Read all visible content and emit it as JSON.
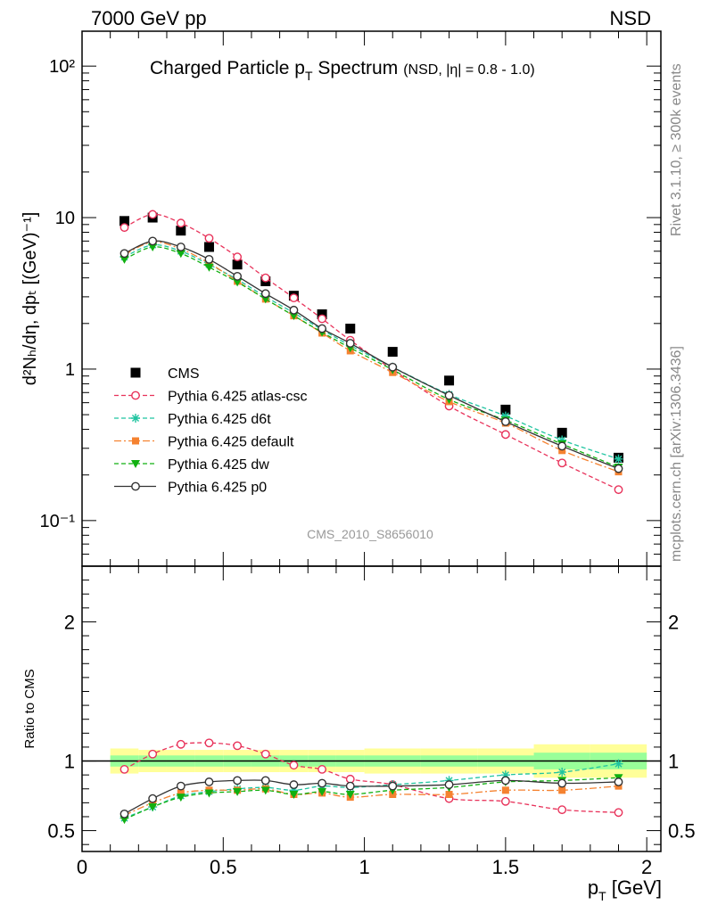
{
  "header": {
    "left": "7000 GeV pp",
    "right": "NSD"
  },
  "side_labels": {
    "rivet": "Rivet 3.1.10, ≥ 300k events",
    "mcplots": "mcplots.cern.ch [arXiv:1306.3436]"
  },
  "colors": {
    "cms": "#000000",
    "atlas_csc": "#e8325a",
    "d6t": "#1fc4a0",
    "default": "#f58230",
    "dw": "#10b010",
    "p0": "#333333",
    "band_outer": "#ffff99",
    "band_inner": "#99ff99"
  },
  "chart_data": [
    {
      "type": "scatter",
      "panel": "main",
      "title": "Charged Particle p",
      "title_sub": "T",
      "title_suffix": " Spectrum",
      "title_note": "(NSD, |η| = 0.8 - 1.0)",
      "ylabel": "d²Nₕ/dη, dpₜ [(GeV)⁻¹]",
      "yscale": "log",
      "xlim": [
        0,
        2.05
      ],
      "ylim": [
        0.05,
        170
      ],
      "ytick_labels": [
        "10⁻¹",
        "1",
        "10",
        "10²"
      ],
      "watermark": "CMS_2010_S8656010",
      "legend_position": "lower-left",
      "x": [
        0.15,
        0.25,
        0.35,
        0.45,
        0.55,
        0.65,
        0.75,
        0.85,
        0.95,
        1.1,
        1.3,
        1.5,
        1.7,
        1.9
      ],
      "series": [
        {
          "name": "CMS",
          "key": "cms",
          "style": "square",
          "values": [
            9.5,
            10.0,
            8.2,
            6.4,
            4.9,
            3.8,
            3.05,
            2.3,
            1.85,
            1.3,
            0.84,
            0.54,
            0.38,
            0.26
          ]
        },
        {
          "name": "Pythia 6.425 atlas-csc",
          "key": "atlas_csc",
          "style": "open-circle-dashed",
          "values": [
            8.6,
            10.5,
            9.2,
            7.3,
            5.5,
            4.0,
            2.95,
            2.15,
            1.55,
            0.99,
            0.57,
            0.37,
            0.24,
            0.16
          ]
        },
        {
          "name": "Pythia 6.425 d6t",
          "key": "d6t",
          "style": "star-dashed",
          "values": [
            5.5,
            6.6,
            6.0,
            4.9,
            3.9,
            3.0,
            2.35,
            1.82,
            1.43,
            1.03,
            0.68,
            0.49,
            0.34,
            0.255
          ]
        },
        {
          "name": "Pythia 6.425 default",
          "key": "default",
          "style": "filled-square-dashdot",
          "values": [
            5.7,
            6.9,
            6.2,
            5.0,
            3.8,
            2.9,
            2.25,
            1.73,
            1.32,
            0.95,
            0.61,
            0.44,
            0.29,
            0.21
          ]
        },
        {
          "name": "Pythia 6.425 dw",
          "key": "dw",
          "style": "triangle-dashed",
          "values": [
            5.3,
            6.4,
            5.8,
            4.7,
            3.75,
            2.9,
            2.25,
            1.75,
            1.38,
            0.99,
            0.63,
            0.46,
            0.32,
            0.225
          ]
        },
        {
          "name": "Pythia 6.425 p0",
          "key": "p0",
          "style": "open-circle-solid",
          "values": [
            5.8,
            7.0,
            6.4,
            5.3,
            4.1,
            3.15,
            2.45,
            1.85,
            1.48,
            1.03,
            0.67,
            0.45,
            0.31,
            0.22
          ]
        }
      ]
    },
    {
      "type": "line",
      "panel": "ratio",
      "ylabel": "Ratio to CMS",
      "xlabel": "p",
      "xlabel_sub": "T",
      "xlabel_suffix": " [GeV]",
      "xlim": [
        0,
        2.05
      ],
      "ylim": [
        0.35,
        2.4
      ],
      "xticks": [
        0,
        0.5,
        1,
        1.5,
        2
      ],
      "yticks": [
        0.5,
        1,
        2
      ],
      "bands": {
        "edges": [
          0.1,
          0.2,
          0.3,
          0.4,
          0.5,
          0.6,
          0.7,
          0.8,
          0.9,
          1.0,
          1.2,
          1.4,
          1.6,
          1.8,
          2.0
        ],
        "outer": [
          [
            0.91,
            1.09
          ],
          [
            0.92,
            1.08
          ],
          [
            0.92,
            1.08
          ],
          [
            0.92,
            1.08
          ],
          [
            0.92,
            1.08
          ],
          [
            0.92,
            1.08
          ],
          [
            0.92,
            1.08
          ],
          [
            0.92,
            1.08
          ],
          [
            0.92,
            1.08
          ],
          [
            0.91,
            1.09
          ],
          [
            0.91,
            1.09
          ],
          [
            0.91,
            1.09
          ],
          [
            0.88,
            1.12
          ],
          [
            0.88,
            1.12
          ]
        ],
        "inner": [
          [
            0.96,
            1.04
          ],
          [
            0.96,
            1.04
          ],
          [
            0.96,
            1.04
          ],
          [
            0.96,
            1.04
          ],
          [
            0.96,
            1.04
          ],
          [
            0.96,
            1.04
          ],
          [
            0.96,
            1.04
          ],
          [
            0.96,
            1.04
          ],
          [
            0.96,
            1.04
          ],
          [
            0.96,
            1.04
          ],
          [
            0.96,
            1.04
          ],
          [
            0.96,
            1.04
          ],
          [
            0.94,
            1.06
          ],
          [
            0.94,
            1.06
          ]
        ]
      },
      "x": [
        0.15,
        0.25,
        0.35,
        0.45,
        0.55,
        0.65,
        0.75,
        0.85,
        0.95,
        1.1,
        1.3,
        1.5,
        1.7,
        1.9
      ],
      "series": [
        {
          "name": "Pythia 6.425 atlas-csc",
          "key": "atlas_csc",
          "style": "open-circle-dashed",
          "values": [
            0.94,
            1.05,
            1.12,
            1.13,
            1.11,
            1.05,
            0.97,
            0.94,
            0.87,
            0.83,
            0.73,
            0.71,
            0.65,
            0.63
          ]
        },
        {
          "name": "Pythia 6.425 d6t",
          "key": "d6t",
          "style": "star-dashed",
          "values": [
            0.59,
            0.67,
            0.75,
            0.78,
            0.8,
            0.81,
            0.79,
            0.82,
            0.81,
            0.83,
            0.86,
            0.9,
            0.92,
            0.98
          ]
        },
        {
          "name": "Pythia 6.425 default",
          "key": "default",
          "style": "filled-square-dashdot",
          "values": [
            0.61,
            0.7,
            0.77,
            0.79,
            0.79,
            0.8,
            0.76,
            0.77,
            0.74,
            0.76,
            0.76,
            0.79,
            0.79,
            0.82
          ]
        },
        {
          "name": "Pythia 6.425 dw",
          "key": "dw",
          "style": "triangle-dashed",
          "values": [
            0.58,
            0.67,
            0.74,
            0.77,
            0.78,
            0.79,
            0.76,
            0.78,
            0.76,
            0.79,
            0.81,
            0.85,
            0.86,
            0.88
          ]
        },
        {
          "name": "Pythia 6.425 p0",
          "key": "p0",
          "style": "open-circle-solid",
          "values": [
            0.62,
            0.73,
            0.82,
            0.85,
            0.86,
            0.86,
            0.83,
            0.84,
            0.82,
            0.82,
            0.83,
            0.86,
            0.84,
            0.85
          ]
        }
      ]
    }
  ]
}
